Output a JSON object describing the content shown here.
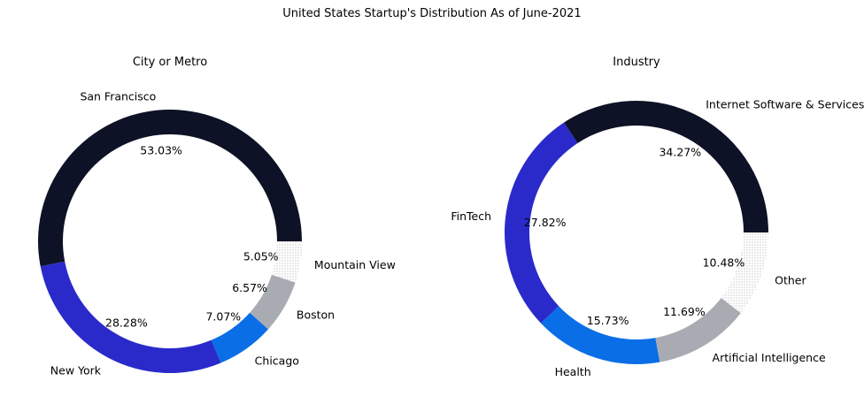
{
  "chart_data": {
    "suptitle": "United States Startup's Distribution As of June-2021",
    "charts": [
      {
        "type": "pie",
        "title": "City or Metro",
        "slices": [
          {
            "label": "San Francisco",
            "value": 53.03,
            "pct_label": "53.03%",
            "color": "#0d1226"
          },
          {
            "label": "New York",
            "value": 28.28,
            "pct_label": "28.28%",
            "color": "#2a2acb"
          },
          {
            "label": "Chicago",
            "value": 7.07,
            "pct_label": "7.07%",
            "color": "#0a6ee6"
          },
          {
            "label": "Boston",
            "value": 6.57,
            "pct_label": "6.57%",
            "color": "#a9abb3"
          },
          {
            "label": "Mountain View",
            "value": 5.05,
            "pct_label": "5.05%",
            "color": "#ffffff",
            "hatch": true
          }
        ]
      },
      {
        "type": "pie",
        "title": "Industry",
        "slices": [
          {
            "label": "Internet Software & Services",
            "value": 34.27,
            "pct_label": "34.27%",
            "color": "#0d1226"
          },
          {
            "label": "FinTech",
            "value": 27.82,
            "pct_label": "27.82%",
            "color": "#2a2acb"
          },
          {
            "label": "Health",
            "value": 15.73,
            "pct_label": "15.73%",
            "color": "#0a6ee6"
          },
          {
            "label": "Artificial Intelligence",
            "value": 11.69,
            "pct_label": "11.69%",
            "color": "#a9abb3"
          },
          {
            "label": "Other",
            "value": 10.48,
            "pct_label": "10.48%",
            "color": "#ffffff",
            "hatch": true
          }
        ]
      }
    ]
  }
}
